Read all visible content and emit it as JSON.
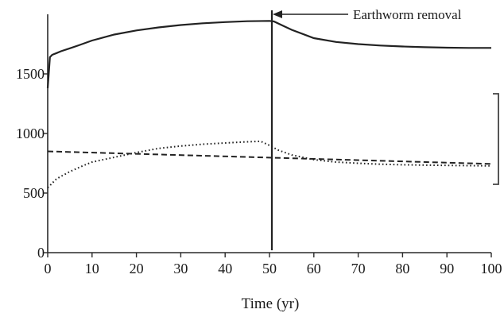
{
  "chart_data": {
    "type": "line",
    "title": "",
    "xlabel": "Time (yr)",
    "ylabel": "",
    "xlim": [
      0,
      100
    ],
    "ylim": [
      0,
      2000
    ],
    "x_ticks": [
      "0",
      "10",
      "20",
      "30",
      "40",
      "50",
      "60",
      "70",
      "80",
      "90",
      "100"
    ],
    "y_ticks": [
      "0",
      "500",
      "1000",
      "1500"
    ],
    "grid": false,
    "legend": "none",
    "annotation": {
      "text": "Earthworm removal",
      "x": 50
    },
    "series": [
      {
        "style": "solid",
        "x": [
          0,
          0.5,
          1,
          2,
          3,
          5,
          7,
          10,
          15,
          20,
          25,
          30,
          35,
          40,
          45,
          50,
          51,
          53,
          55,
          60,
          65,
          70,
          75,
          80,
          85,
          90,
          95,
          100
        ],
        "y": [
          1380,
          1640,
          1660,
          1675,
          1690,
          1715,
          1740,
          1780,
          1830,
          1865,
          1890,
          1910,
          1925,
          1935,
          1942,
          1945,
          1940,
          1905,
          1870,
          1800,
          1768,
          1750,
          1738,
          1730,
          1724,
          1720,
          1718,
          1718
        ]
      },
      {
        "style": "dotted",
        "x": [
          0,
          2,
          5,
          8,
          10,
          15,
          20,
          25,
          30,
          35,
          40,
          45,
          48,
          50,
          52,
          55,
          60,
          65,
          70,
          75,
          80,
          90,
          100
        ],
        "y": [
          545,
          620,
          680,
          730,
          760,
          800,
          840,
          875,
          895,
          910,
          920,
          930,
          935,
          900,
          860,
          820,
          780,
          760,
          750,
          742,
          737,
          732,
          728
        ]
      },
      {
        "style": "dashed",
        "x": [
          0,
          100
        ],
        "y": [
          850,
          745
        ]
      }
    ]
  }
}
